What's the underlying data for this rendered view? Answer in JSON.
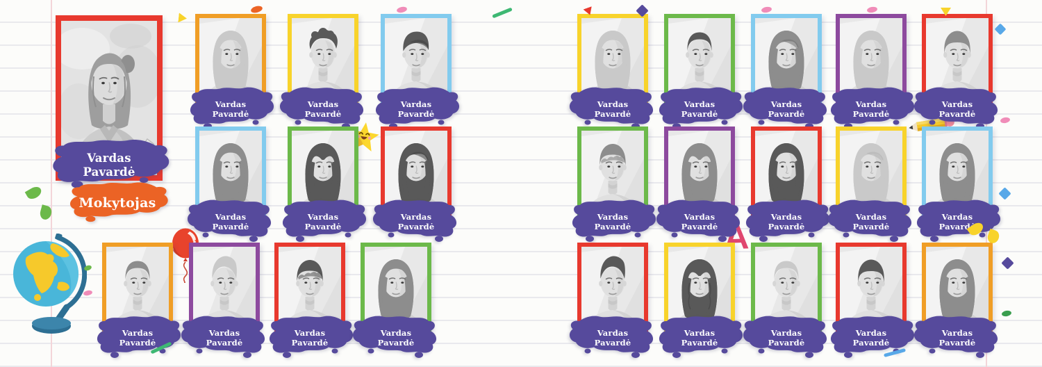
{
  "poster": {
    "teacher": {
      "name_line1": "Vardas",
      "name_line2": "Pavardė",
      "role": "Mokytojas",
      "frame_color": "#e8392e",
      "portrait": "teacher-woman"
    },
    "groups": [
      {
        "id": "left",
        "students": [
          {
            "frame_color": "#f09e26",
            "portrait": "girl-long",
            "hair_tone": "light",
            "name_line1": "Vardas",
            "name_line2": "Pavardė"
          },
          {
            "frame_color": "#f8d32b",
            "portrait": "boy-curly",
            "hair_tone": "dark",
            "name_line1": "Vardas",
            "name_line2": "Pavardė"
          },
          {
            "frame_color": "#82cbee",
            "portrait": "boy-swoop",
            "hair_tone": "dark",
            "name_line1": "Vardas",
            "name_line2": "Pavardė"
          },
          {
            "frame_color": "#82cbee",
            "portrait": "girl-long",
            "hair_tone": "mid",
            "name_line1": "Vardas",
            "name_line2": "Pavardė"
          },
          {
            "frame_color": "#6cb94a",
            "portrait": "girl-mid",
            "hair_tone": "dark",
            "name_line1": "Vardas",
            "name_line2": "Pavardė"
          },
          {
            "frame_color": "#e8392e",
            "portrait": "girl-long2",
            "hair_tone": "dark",
            "name_line1": "Vardas",
            "name_line2": "Pavardė"
          },
          {
            "frame_color": "#f09e26",
            "portrait": "boy-short",
            "hair_tone": "mid",
            "name_line1": "Vardas",
            "name_line2": "Pavardė"
          },
          {
            "frame_color": "#8d4a9e",
            "portrait": "boy-quiff",
            "hair_tone": "light",
            "name_line1": "Vardas",
            "name_line2": "Pavardė"
          },
          {
            "frame_color": "#e8392e",
            "portrait": "boy-wavy",
            "hair_tone": "dark",
            "name_line1": "Vardas",
            "name_line2": "Pavardė"
          },
          {
            "frame_color": "#6cb94a",
            "portrait": "girl-long",
            "hair_tone": "mid",
            "name_line1": "Vardas",
            "name_line2": "Pavardė"
          }
        ]
      },
      {
        "id": "right",
        "students": [
          {
            "frame_color": "#f8d32b",
            "portrait": "girl-long",
            "hair_tone": "light",
            "name_line1": "Vardas",
            "name_line2": "Pavardė"
          },
          {
            "frame_color": "#6cb94a",
            "portrait": "boy-short",
            "hair_tone": "dark",
            "name_line1": "Vardas",
            "name_line2": "Pavardė"
          },
          {
            "frame_color": "#82cbee",
            "portrait": "girl-long2",
            "hair_tone": "mid",
            "name_line1": "Vardas",
            "name_line2": "Pavardė"
          },
          {
            "frame_color": "#8d4a9e",
            "portrait": "girl-long",
            "hair_tone": "light",
            "name_line1": "Vardas",
            "name_line2": "Pavardė"
          },
          {
            "frame_color": "#e8392e",
            "portrait": "boy-mop",
            "hair_tone": "mid",
            "name_line1": "Vardas",
            "name_line2": "Pavardė"
          },
          {
            "frame_color": "#6cb94a",
            "portrait": "boy-wavy",
            "hair_tone": "mid",
            "name_line1": "Vardas",
            "name_line2": "Pavardė"
          },
          {
            "frame_color": "#8d4a9e",
            "portrait": "girl-mid",
            "hair_tone": "mid",
            "name_line1": "Vardas",
            "name_line2": "Pavardė"
          },
          {
            "frame_color": "#e8392e",
            "portrait": "girl-long",
            "hair_tone": "dark",
            "name_line1": "Vardas",
            "name_line2": "Pavardė"
          },
          {
            "frame_color": "#f8d32b",
            "portrait": "girl-long2",
            "hair_tone": "light",
            "name_line1": "Vardas",
            "name_line2": "Pavardė"
          },
          {
            "frame_color": "#82cbee",
            "portrait": "girl-long",
            "hair_tone": "mid",
            "name_line1": "Vardas",
            "name_line2": "Pavardė"
          },
          {
            "frame_color": "#e8392e",
            "portrait": "boy-quiff",
            "hair_tone": "dark",
            "name_line1": "Vardas",
            "name_line2": "Pavardė"
          },
          {
            "frame_color": "#f8d32b",
            "portrait": "girl-wavy",
            "hair_tone": "dark",
            "name_line1": "Vardas",
            "name_line2": "Pavardė"
          },
          {
            "frame_color": "#6cb94a",
            "portrait": "boy-short",
            "hair_tone": "light",
            "name_line1": "Vardas",
            "name_line2": "Pavardė"
          },
          {
            "frame_color": "#e8392e",
            "portrait": "boy-mop",
            "hair_tone": "dark",
            "name_line1": "Vardas",
            "name_line2": "Pavardė"
          },
          {
            "frame_color": "#f09e26",
            "portrait": "girl-long",
            "hair_tone": "mid",
            "name_line1": "Vardas",
            "name_line2": "Pavardė"
          }
        ]
      }
    ],
    "letter_a": {
      "text": "A",
      "color": "#e0476f"
    },
    "palette": {
      "splash_purple": "#564a9c",
      "splash_orange": "#eb6325",
      "frame_red": "#e8392e",
      "frame_orange": "#f09e26",
      "frame_yellow": "#f8d32b",
      "frame_blue": "#82cbee",
      "frame_green": "#6cb94a",
      "frame_purple": "#8d4a9e",
      "paper_line": "#e9e9ed",
      "margin_line": "#f3d5d9"
    },
    "decorations": {
      "globe": {
        "ocean": "#49b6d9",
        "land": "#f6c92b",
        "stand": "#2d6f93"
      },
      "balloon": {
        "color": "#e8432c"
      },
      "star": {
        "color": "#fcd72d"
      },
      "pencil": {
        "body": "#f6c92b",
        "eraser": "#ef8a9b"
      },
      "confetti": [
        {
          "shape": "triangle",
          "color": "#f8d32b"
        },
        {
          "shape": "ellipse",
          "color": "#ec6425"
        },
        {
          "shape": "ellipse",
          "color": "#f08cb8"
        },
        {
          "shape": "dash",
          "color": "#3eb873"
        },
        {
          "shape": "triangle",
          "color": "#e8392e"
        },
        {
          "shape": "diamond",
          "color": "#564a9c"
        },
        {
          "shape": "ellipse",
          "color": "#f08cb8"
        },
        {
          "shape": "ellipse",
          "color": "#f08cb8"
        },
        {
          "shape": "triangle",
          "color": "#f8d32b"
        },
        {
          "shape": "diamond",
          "color": "#58a8e8"
        },
        {
          "shape": "drop",
          "color": "#6cb94a"
        },
        {
          "shape": "drop",
          "color": "#6cb94a"
        },
        {
          "shape": "ellipse",
          "color": "#6cb94a"
        },
        {
          "shape": "ellipse",
          "color": "#f08cb8"
        },
        {
          "shape": "dash",
          "color": "#3eb873"
        },
        {
          "shape": "ellipse",
          "color": "#f08cb8"
        },
        {
          "shape": "diamond",
          "color": "#58a8e8"
        },
        {
          "shape": "drop",
          "color": "#f8d32b"
        },
        {
          "shape": "drop",
          "color": "#f8d32b"
        },
        {
          "shape": "diamond",
          "color": "#564a9c"
        },
        {
          "shape": "ellipse",
          "color": "#3a9e4e"
        },
        {
          "shape": "dash",
          "color": "#58a8e8"
        }
      ]
    }
  }
}
